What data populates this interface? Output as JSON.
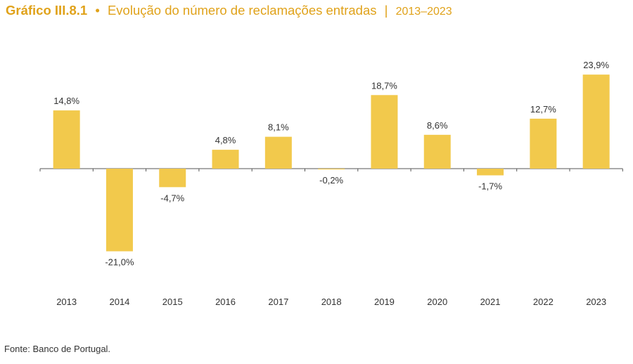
{
  "header": {
    "chart_number": "Gráfico III.8.1",
    "bullet": "•",
    "title": "Evolução do número de reclamações entradas",
    "separator": "|",
    "period": "2013–2023"
  },
  "chart_data": {
    "type": "bar",
    "categories": [
      "2013",
      "2014",
      "2015",
      "2016",
      "2017",
      "2018",
      "2019",
      "2020",
      "2021",
      "2022",
      "2023"
    ],
    "values": [
      14.8,
      -21.0,
      -4.7,
      4.8,
      8.1,
      -0.2,
      18.7,
      8.6,
      -1.7,
      12.7,
      23.9
    ],
    "data_labels": [
      "14,8%",
      "-21,0%",
      "-4,7%",
      "4,8%",
      "8,1%",
      "-0,2%",
      "18,7%",
      "8,6%",
      "-1,7%",
      "12,7%",
      "23,9%"
    ],
    "unit": "%",
    "grid": false,
    "legend": "none",
    "bar_color": "#f2c94c"
  },
  "footer": {
    "source": "Fonte: Banco de Portugal."
  }
}
